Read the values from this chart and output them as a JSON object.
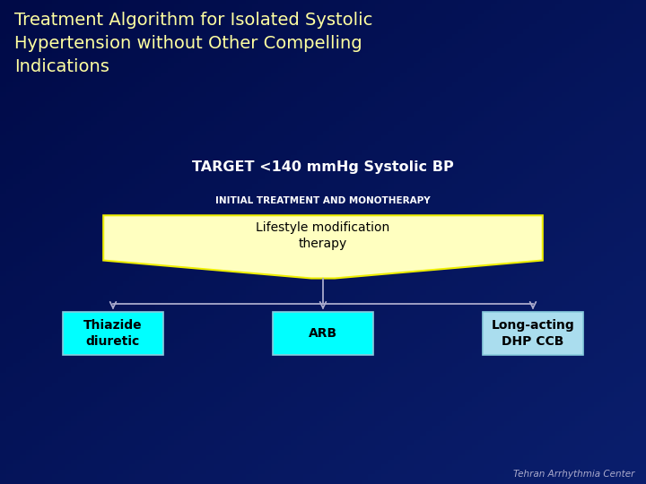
{
  "title": "Treatment Algorithm for Isolated Systolic\nHypertension without Other Compelling\nIndications",
  "title_color": "#FFFFA0",
  "bg_color": "#001050",
  "target_text": "TARGET <140 mmHg Systolic BP",
  "target_color": "#FFFFFF",
  "initial_text": "INITIAL TREATMENT AND MONOTHERAPY",
  "initial_color": "#FFFFFF",
  "top_box_text": "Lifestyle modification\ntherapy",
  "top_box_fill": "#FFFFC0",
  "top_box_edge": "#EEEE00",
  "bottom_boxes": [
    "Thiazide\ndiuretic",
    "ARB",
    "Long-acting\nDHP CCB"
  ],
  "bottom_box_fills": [
    "#00FFFF",
    "#00FFFF",
    "#AADDEE"
  ],
  "bottom_box_edge": "#88CCDD",
  "box_text_color": "#000000",
  "arrow_color": "#AAAACC",
  "watermark": "Tehran Arrhythmia Center",
  "watermark_color": "#AAAACC",
  "fig_width": 7.2,
  "fig_height": 5.4,
  "dpi": 100
}
